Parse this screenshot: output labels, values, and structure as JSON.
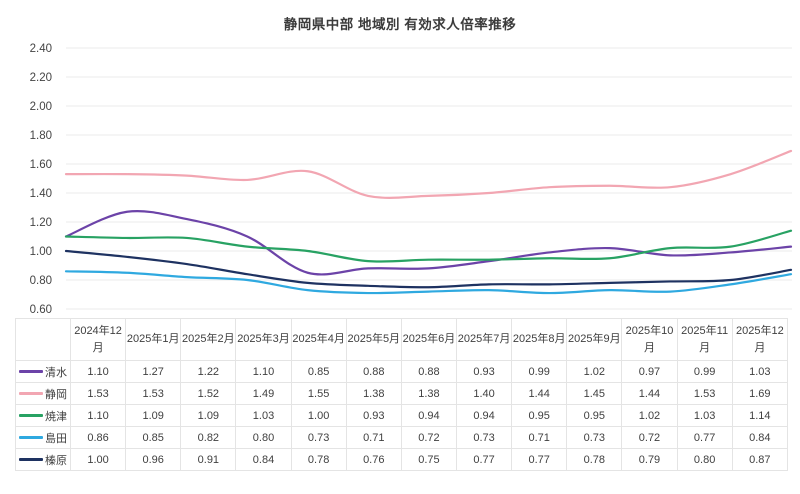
{
  "title": "静岡県中部 地域別 有効求人倍率推移",
  "chart_data": {
    "type": "line",
    "smooth": true,
    "grid": true,
    "legend_position": "table-left",
    "ylim": [
      0.6,
      2.4
    ],
    "y_tick_step": 0.2,
    "y_ticks": [
      "2.40",
      "2.20",
      "2.00",
      "1.80",
      "1.60",
      "1.40",
      "1.20",
      "1.00",
      "0.80",
      "0.60"
    ],
    "categories": [
      "2024年12月",
      "2025年1月",
      "2025年2月",
      "2025年3月",
      "2025年4月",
      "2025年5月",
      "2025年6月",
      "2025年7月",
      "2025年8月",
      "2025年9月",
      "2025年10月",
      "2025年11月",
      "2025年12月"
    ],
    "series": [
      {
        "name": "清水",
        "color": "#6c43a8",
        "values": [
          1.1,
          1.27,
          1.22,
          1.1,
          0.85,
          0.88,
          0.88,
          0.93,
          0.99,
          1.02,
          0.97,
          0.99,
          1.03
        ]
      },
      {
        "name": "静岡",
        "color": "#f2a6b2",
        "values": [
          1.53,
          1.53,
          1.52,
          1.49,
          1.55,
          1.38,
          1.38,
          1.4,
          1.44,
          1.45,
          1.44,
          1.53,
          1.69
        ]
      },
      {
        "name": "焼津",
        "color": "#28a263",
        "values": [
          1.1,
          1.09,
          1.09,
          1.03,
          1.0,
          0.93,
          0.94,
          0.94,
          0.95,
          0.95,
          1.02,
          1.03,
          1.14
        ]
      },
      {
        "name": "島田",
        "color": "#2fa9e0",
        "values": [
          0.86,
          0.85,
          0.82,
          0.8,
          0.73,
          0.71,
          0.72,
          0.73,
          0.71,
          0.73,
          0.72,
          0.77,
          0.84
        ]
      },
      {
        "name": "榛原",
        "color": "#1e3261",
        "values": [
          1.0,
          0.96,
          0.91,
          0.84,
          0.78,
          0.76,
          0.75,
          0.77,
          0.77,
          0.78,
          0.79,
          0.8,
          0.87
        ]
      }
    ]
  },
  "colors": {
    "grid_line": "#ebebeb",
    "axis_text": "#444444",
    "table_border": "#e4e4e4",
    "table_text": "#404040",
    "title_text": "#3b3b3b",
    "background": "#ffffff"
  }
}
